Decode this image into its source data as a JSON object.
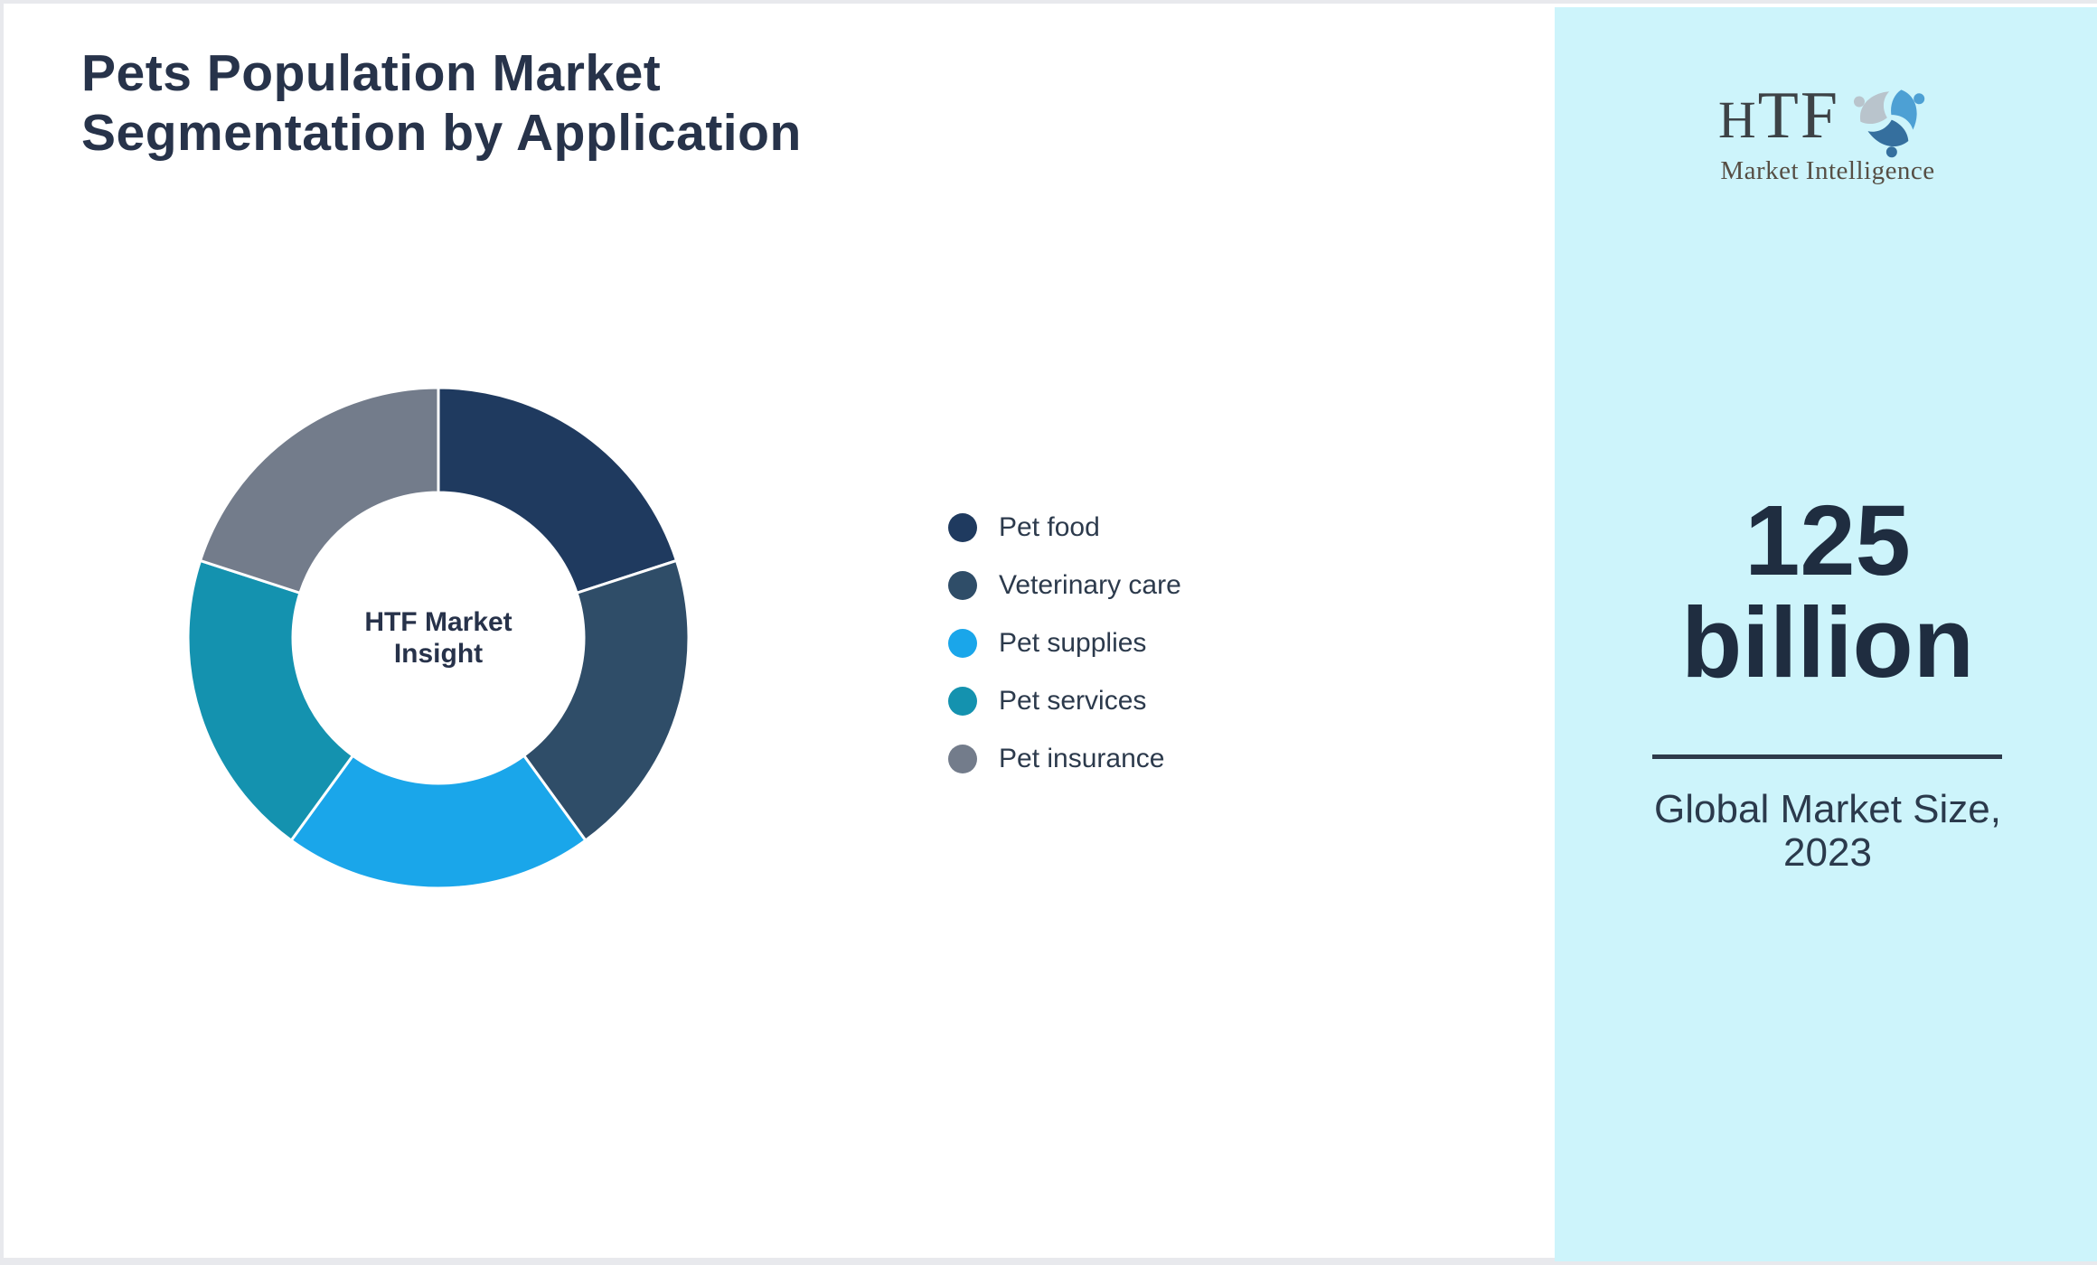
{
  "header": {
    "title": "Pets Population Market\nSegmentation by Application"
  },
  "chart_data": {
    "type": "pie",
    "subtype": "donut",
    "center_label": "HTF Market\nInsight",
    "categories": [
      "Pet food",
      "Veterinary care",
      "Pet supplies",
      "Pet services",
      "Pet insurance"
    ],
    "values": [
      20,
      20,
      20,
      20,
      20
    ],
    "colors": [
      "#1f3a5f",
      "#2f4d68",
      "#1aa6ea",
      "#1492af",
      "#737c8b"
    ],
    "separator_color": "#ffffff",
    "legend_position": "right"
  },
  "sidebar": {
    "background": "#cdf4fb",
    "logo": {
      "acronym": "HTF",
      "tagline": "Market Intelligence",
      "icon": "three-figures-swirl-icon",
      "icon_colors": [
        "#4da0d4",
        "#b9c4cc",
        "#356f9e"
      ]
    },
    "stat_value": "125\nbillion",
    "stat_label": "Global Market Size,\n2023",
    "divider_color": "#2d3a4a"
  }
}
